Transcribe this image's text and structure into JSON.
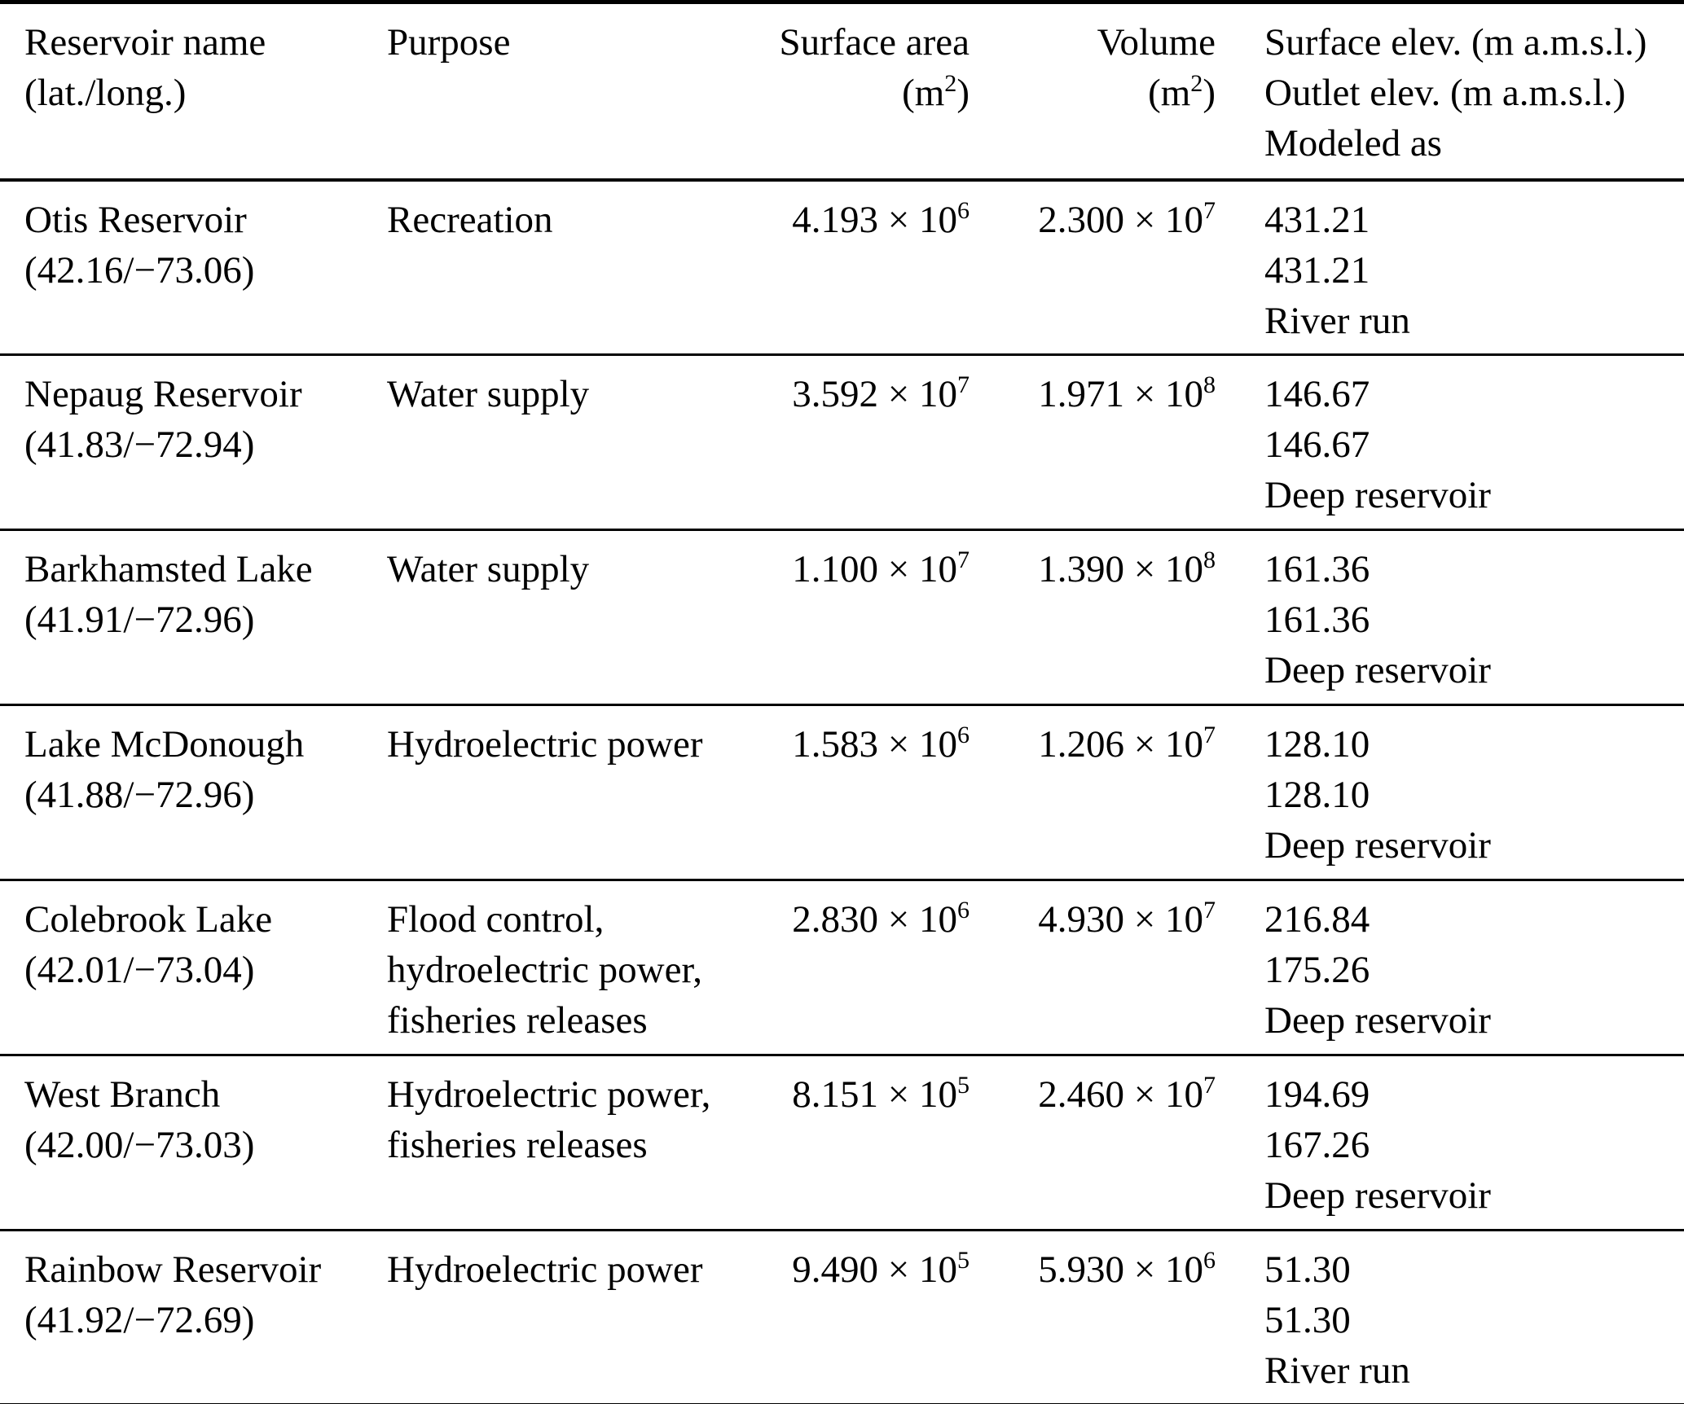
{
  "colors": {
    "text": "#000000",
    "background": "#ffffff",
    "rule": "#000000"
  },
  "columns": {
    "reservoir": {
      "line1": "Reservoir name",
      "line2": "(lat./long.)"
    },
    "purpose": {
      "line1": "Purpose"
    },
    "surface_area": {
      "line1": "Surface area",
      "unit_base": "(m",
      "unit_exp": "2",
      "unit_end": ")"
    },
    "volume": {
      "line1": "Volume",
      "unit_base": "(m",
      "unit_exp": "2",
      "unit_end": ")"
    },
    "elev": {
      "line1": "Surface elev. (m a.m.s.l.)",
      "line2": "Outlet elev. (m a.m.s.l.)",
      "line3": "Modeled as"
    }
  },
  "rows": [
    {
      "name": "Otis Reservoir",
      "latlong": "(42.16/−73.06)",
      "purpose_lines": [
        "Recreation"
      ],
      "surface_area": {
        "mantissa": "4.193 × 10",
        "exp": "6"
      },
      "volume": {
        "mantissa": "2.300 × 10",
        "exp": "7"
      },
      "surface_elev": "431.21",
      "outlet_elev": "431.21",
      "modeled_as": "River run"
    },
    {
      "name": "Nepaug Reservoir",
      "latlong": "(41.83/−72.94)",
      "purpose_lines": [
        "Water supply"
      ],
      "surface_area": {
        "mantissa": "3.592 × 10",
        "exp": "7"
      },
      "volume": {
        "mantissa": "1.971 × 10",
        "exp": "8"
      },
      "surface_elev": "146.67",
      "outlet_elev": "146.67",
      "modeled_as": "Deep reservoir"
    },
    {
      "name": "Barkhamsted Lake",
      "latlong": "(41.91/−72.96)",
      "purpose_lines": [
        "Water supply"
      ],
      "surface_area": {
        "mantissa": "1.100 × 10",
        "exp": "7"
      },
      "volume": {
        "mantissa": "1.390 × 10",
        "exp": "8"
      },
      "surface_elev": "161.36",
      "outlet_elev": "161.36",
      "modeled_as": "Deep reservoir"
    },
    {
      "name": "Lake McDonough",
      "latlong": "(41.88/−72.96)",
      "purpose_lines": [
        "Hydroelectric power"
      ],
      "surface_area": {
        "mantissa": "1.583 × 10",
        "exp": "6"
      },
      "volume": {
        "mantissa": "1.206 × 10",
        "exp": "7"
      },
      "surface_elev": "128.10",
      "outlet_elev": "128.10",
      "modeled_as": "Deep reservoir"
    },
    {
      "name": "Colebrook Lake",
      "latlong": "(42.01/−73.04)",
      "purpose_lines": [
        "Flood control,",
        "hydroelectric power,",
        "fisheries releases"
      ],
      "surface_area": {
        "mantissa": "2.830 × 10",
        "exp": "6"
      },
      "volume": {
        "mantissa": "4.930 × 10",
        "exp": "7"
      },
      "surface_elev": "216.84",
      "outlet_elev": "175.26",
      "modeled_as": "Deep reservoir"
    },
    {
      "name": "West Branch",
      "latlong": "(42.00/−73.03)",
      "purpose_lines": [
        "Hydroelectric power,",
        "fisheries releases"
      ],
      "surface_area": {
        "mantissa": "8.151 × 10",
        "exp": "5"
      },
      "volume": {
        "mantissa": "2.460 × 10",
        "exp": "7"
      },
      "surface_elev": "194.69",
      "outlet_elev": "167.26",
      "modeled_as": "Deep reservoir"
    },
    {
      "name": "Rainbow Reservoir",
      "latlong": "(41.92/−72.69)",
      "purpose_lines": [
        "Hydroelectric power"
      ],
      "surface_area": {
        "mantissa": "9.490 × 10",
        "exp": "5"
      },
      "volume": {
        "mantissa": "5.930 × 10",
        "exp": "6"
      },
      "surface_elev": "51.30",
      "outlet_elev": "51.30",
      "modeled_as": "River run"
    }
  ]
}
